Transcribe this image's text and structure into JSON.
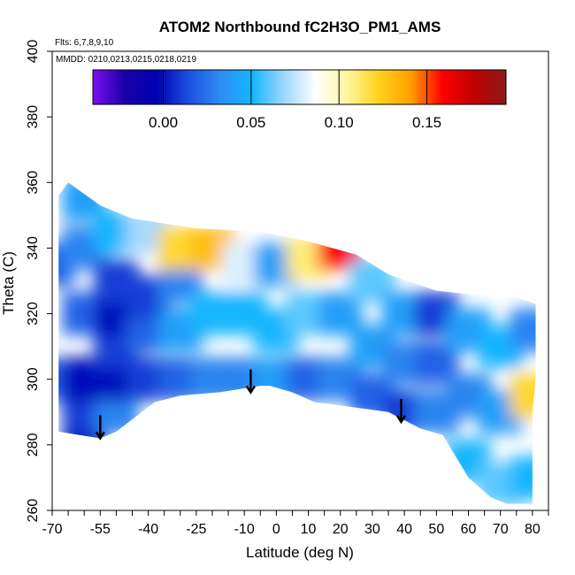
{
  "chart_data": {
    "type": "heatmap",
    "title": "ATOM2 Northbound fC2H3O_PM1_AMS",
    "annotations": [
      "Flts: 6,7,8,9,10",
      "MMDD: 0210,0213,0215,0218,0219"
    ],
    "xlabel": "Latitude (deg N)",
    "ylabel": "Theta (C)",
    "xlim": [
      -70,
      85
    ],
    "ylim": [
      260,
      400
    ],
    "x_ticks": [
      -70,
      -55,
      -40,
      -25,
      -10,
      0,
      10,
      20,
      30,
      40,
      50,
      60,
      70,
      80
    ],
    "x_tick_labels": [
      "-70",
      "-55",
      "-40",
      "-25",
      "-10",
      "0",
      "10",
      "20",
      "30",
      "40",
      "50",
      "60",
      "70",
      "80"
    ],
    "x_minor_step": 5,
    "y_ticks": [
      260,
      280,
      300,
      320,
      340,
      360,
      380,
      400
    ],
    "y_tick_labels": [
      "260",
      "280",
      "300",
      "320",
      "340",
      "360",
      "380",
      "400"
    ],
    "colorbar": {
      "range": [
        -0.04,
        0.195
      ],
      "ticks": [
        0.0,
        0.05,
        0.1,
        0.15
      ],
      "tick_labels": [
        "0.00",
        "0.05",
        "0.10",
        "0.15"
      ],
      "colors": [
        "#7a10ee",
        "#1a00a8",
        "#0000b0",
        "#1a4fe0",
        "#2f8cf2",
        "#12b6ff",
        "#9cd6ff",
        "#ffffff",
        "#fff6a0",
        "#ffd21a",
        "#ffa000",
        "#ff0000",
        "#c00000",
        "#8b1a1a"
      ]
    },
    "boundary": [
      [
        -68,
        284
      ],
      [
        -55,
        282
      ],
      [
        -50,
        284
      ],
      [
        -38,
        293
      ],
      [
        -30,
        295
      ],
      [
        -18,
        296
      ],
      [
        -5,
        298
      ],
      [
        -2,
        298
      ],
      [
        5,
        296
      ],
      [
        12,
        293
      ],
      [
        20,
        292
      ],
      [
        35,
        290
      ],
      [
        45,
        285
      ],
      [
        52,
        283
      ],
      [
        60,
        270
      ],
      [
        67,
        264
      ],
      [
        72,
        262
      ],
      [
        80,
        262
      ],
      [
        80,
        290
      ],
      [
        81,
        300
      ],
      [
        81,
        323
      ],
      [
        75,
        325
      ],
      [
        60,
        326
      ],
      [
        50,
        327
      ],
      [
        35,
        332
      ],
      [
        25,
        338
      ],
      [
        10,
        342
      ],
      [
        -5,
        345
      ],
      [
        -25,
        346
      ],
      [
        -45,
        349
      ],
      [
        -55,
        353
      ],
      [
        -65,
        360
      ],
      [
        -68,
        356
      ]
    ],
    "cells": [
      [
        -70,
        300,
        0.02
      ],
      [
        -70,
        335,
        0.02
      ],
      [
        -60,
        285,
        0.0
      ],
      [
        -60,
        290,
        0.01
      ],
      [
        -60,
        300,
        0.0
      ],
      [
        -60,
        320,
        0.02
      ],
      [
        -60,
        340,
        0.03
      ],
      [
        -60,
        355,
        0.04
      ],
      [
        -50,
        290,
        0.03
      ],
      [
        -50,
        300,
        0.0
      ],
      [
        -50,
        310,
        0.01
      ],
      [
        -50,
        320,
        0.0
      ],
      [
        -50,
        330,
        0.01
      ],
      [
        -50,
        345,
        0.05
      ],
      [
        -40,
        300,
        0.01
      ],
      [
        -40,
        315,
        0.02
      ],
      [
        -40,
        325,
        0.01
      ],
      [
        -40,
        345,
        0.07
      ],
      [
        -30,
        300,
        0.02
      ],
      [
        -30,
        315,
        0.04
      ],
      [
        -30,
        330,
        0.03
      ],
      [
        -30,
        340,
        0.12
      ],
      [
        -20,
        300,
        0.03
      ],
      [
        -20,
        320,
        0.05
      ],
      [
        -20,
        340,
        0.13
      ],
      [
        -10,
        300,
        0.03
      ],
      [
        -10,
        320,
        0.05
      ],
      [
        -10,
        335,
        0.08
      ],
      [
        0,
        300,
        0.04
      ],
      [
        0,
        315,
        0.05
      ],
      [
        0,
        335,
        0.04
      ],
      [
        10,
        300,
        0.02
      ],
      [
        10,
        320,
        0.06
      ],
      [
        10,
        337,
        0.11
      ],
      [
        20,
        300,
        0.03
      ],
      [
        20,
        320,
        0.04
      ],
      [
        20,
        340,
        0.16
      ],
      [
        30,
        295,
        0.02
      ],
      [
        30,
        310,
        0.04
      ],
      [
        30,
        330,
        0.06
      ],
      [
        40,
        290,
        0.01
      ],
      [
        40,
        305,
        0.03
      ],
      [
        40,
        320,
        0.04
      ],
      [
        50,
        290,
        0.03
      ],
      [
        50,
        305,
        0.02
      ],
      [
        50,
        320,
        0.01
      ],
      [
        60,
        275,
        0.05
      ],
      [
        60,
        295,
        0.03
      ],
      [
        60,
        315,
        0.04
      ],
      [
        70,
        268,
        0.06
      ],
      [
        70,
        290,
        0.04
      ],
      [
        70,
        310,
        0.05
      ],
      [
        80,
        270,
        0.05
      ],
      [
        80,
        295,
        0.12
      ],
      [
        80,
        315,
        0.03
      ]
    ],
    "arrows": [
      [
        -55,
        289,
        282
      ],
      [
        -8,
        303,
        296
      ],
      [
        39,
        294,
        287
      ]
    ]
  }
}
